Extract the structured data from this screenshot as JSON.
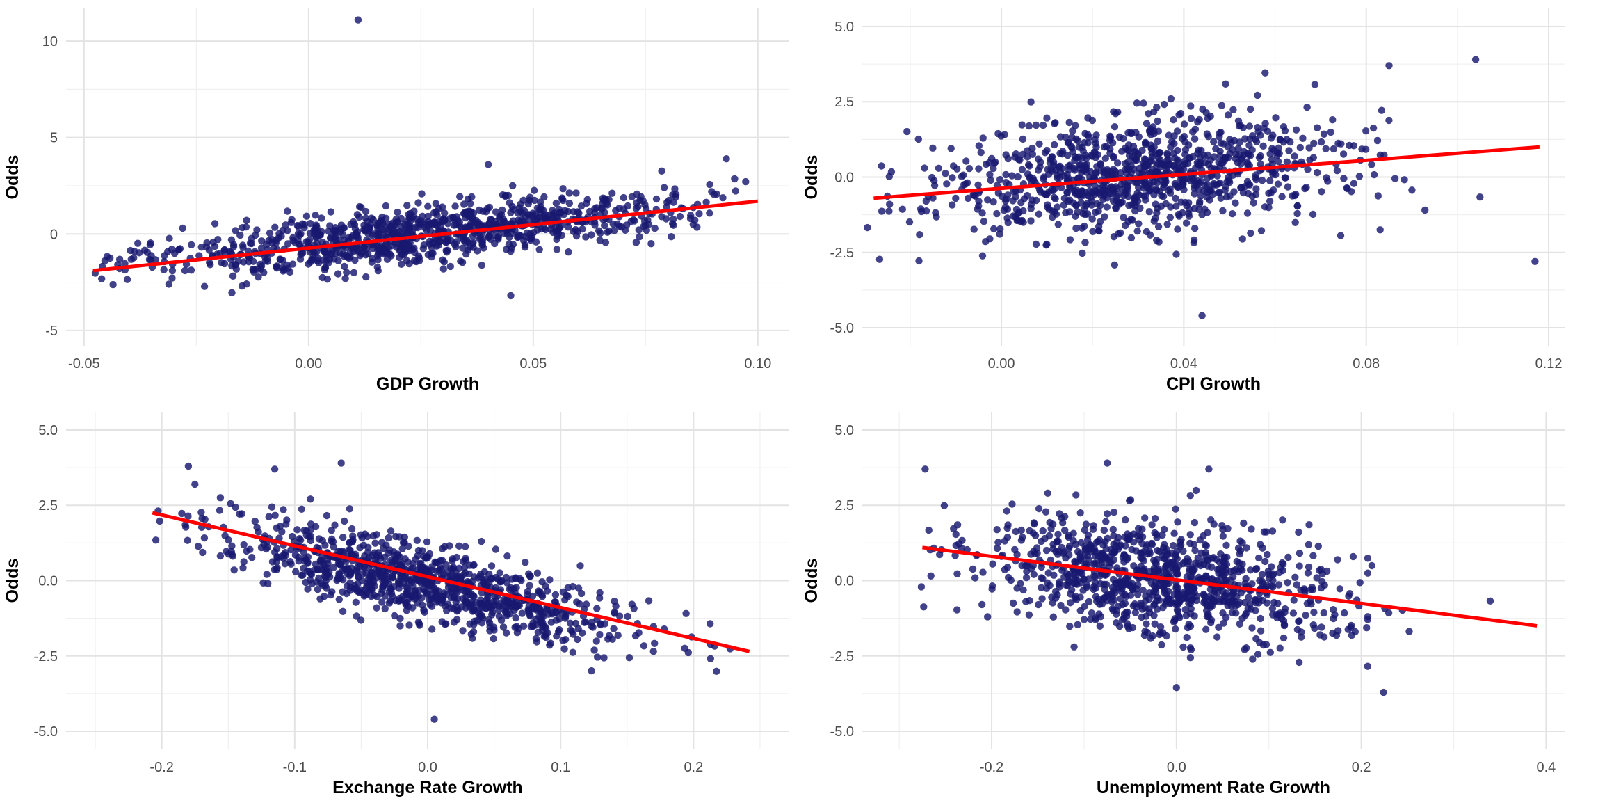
{
  "chart_data": [
    {
      "type": "scatter",
      "xlabel": "GDP Growth",
      "ylabel": "Odds",
      "xlim": [
        -0.054,
        0.107
      ],
      "ylim": [
        -5.8,
        11.7
      ],
      "x_ticks": [
        -0.05,
        0.0,
        0.05,
        0.1
      ],
      "x_tick_labels": [
        "-0.05",
        "0.00",
        "0.05",
        "0.10"
      ],
      "y_ticks": [
        -5,
        0,
        5,
        10
      ],
      "y_tick_labels": [
        "-5",
        "0",
        "5",
        "10"
      ],
      "grid": true,
      "point_color": "#191970",
      "n_points": 1000,
      "x_range": [
        -0.048,
        0.1
      ],
      "x_center": 0.025,
      "x_spread": 0.03,
      "trend_intercept": -0.6,
      "trend_slope": 23.5,
      "noise_sd": 0.72,
      "seed": 11,
      "outliers": [
        {
          "x": 0.011,
          "y": 11.1
        },
        {
          "x": 0.04,
          "y": 3.6
        },
        {
          "x": 0.045,
          "y": -3.2
        },
        {
          "x": 0.093,
          "y": 3.9
        }
      ],
      "fit_line": {
        "x": [
          -0.048,
          0.1
        ],
        "y": [
          -1.9,
          1.7
        ],
        "color": "#ff0000"
      }
    },
    {
      "type": "scatter",
      "xlabel": "CPI Growth",
      "ylabel": "Odds",
      "xlim": [
        -0.0305,
        0.1235
      ],
      "ylim": [
        -5.6,
        5.6
      ],
      "x_ticks": [
        0.0,
        0.04,
        0.08,
        0.12
      ],
      "x_tick_labels": [
        "0.00",
        "0.04",
        "0.08",
        "0.12"
      ],
      "y_ticks": [
        -5,
        -2.5,
        0,
        2.5,
        5
      ],
      "y_tick_labels": [
        "-5.0",
        "-2.5",
        "0.0",
        "2.5",
        "5.0"
      ],
      "grid": true,
      "point_color": "#191970",
      "n_points": 1000,
      "x_range": [
        -0.03,
        0.119
      ],
      "x_center": 0.03,
      "x_spread": 0.022,
      "trend_intercept": -0.3,
      "trend_slope": 11.2,
      "noise_sd": 0.95,
      "seed": 23,
      "outliers": [
        {
          "x": 0.044,
          "y": -4.6
        },
        {
          "x": 0.104,
          "y": 3.9
        },
        {
          "x": 0.085,
          "y": 3.7
        },
        {
          "x": 0.117,
          "y": -2.8
        }
      ],
      "fit_line": {
        "x": [
          -0.028,
          0.118
        ],
        "y": [
          -0.7,
          1.0
        ],
        "color": "#ff0000"
      }
    },
    {
      "type": "scatter",
      "xlabel": "Exchange Rate Growth",
      "ylabel": "Odds",
      "xlim": [
        -0.272,
        0.272
      ],
      "ylim": [
        -5.6,
        5.6
      ],
      "x_ticks": [
        -0.2,
        -0.1,
        0.0,
        0.1,
        0.2
      ],
      "x_tick_labels": [
        "-0.2",
        "-0.1",
        "0.0",
        "0.1",
        "0.2"
      ],
      "y_ticks": [
        -5,
        -2.5,
        0,
        2.5,
        5
      ],
      "y_tick_labels": [
        "-5.0",
        "-2.5",
        "0.0",
        "2.5",
        "5.0"
      ],
      "grid": true,
      "point_color": "#191970",
      "n_points": 1000,
      "x_range": [
        -0.21,
        0.245
      ],
      "x_center": 0.0,
      "x_spread": 0.075,
      "trend_intercept": -0.1,
      "trend_slope": -10.0,
      "noise_sd": 0.62,
      "seed": 37,
      "outliers": [
        {
          "x": 0.005,
          "y": -4.6
        },
        {
          "x": -0.18,
          "y": 3.8
        },
        {
          "x": -0.065,
          "y": 3.9
        },
        {
          "x": -0.115,
          "y": 3.7
        }
      ],
      "fit_line": {
        "x": [
          -0.207,
          0.242
        ],
        "y": [
          2.25,
          -2.35
        ],
        "color": "#ff0000"
      }
    },
    {
      "type": "scatter",
      "xlabel": "Unemployment Rate Growth",
      "ylabel": "Odds",
      "xlim": [
        -0.34,
        0.42
      ],
      "ylim": [
        -5.6,
        5.6
      ],
      "x_ticks": [
        -0.2,
        0.0,
        0.2,
        0.4
      ],
      "x_tick_labels": [
        "-0.2",
        "0.0",
        "0.2",
        "0.4"
      ],
      "y_ticks": [
        -5,
        -2.5,
        0,
        2.5,
        5
      ],
      "y_tick_labels": [
        "-5.0",
        "-2.5",
        "0.0",
        "2.5",
        "5.0"
      ],
      "grid": true,
      "point_color": "#191970",
      "n_points": 1000,
      "x_range": [
        -0.28,
        0.395
      ],
      "x_center": -0.02,
      "x_spread": 0.1,
      "trend_intercept": -0.05,
      "trend_slope": -3.9,
      "noise_sd": 0.9,
      "seed": 53,
      "outliers": [
        {
          "x": 0.0,
          "y": -3.55
        },
        {
          "x": -0.075,
          "y": 3.9
        },
        {
          "x": 0.035,
          "y": 3.7
        },
        {
          "x": -0.272,
          "y": 3.7
        }
      ],
      "fit_line": {
        "x": [
          -0.275,
          0.39
        ],
        "y": [
          1.1,
          -1.5
        ],
        "color": "#ff0000"
      }
    }
  ]
}
